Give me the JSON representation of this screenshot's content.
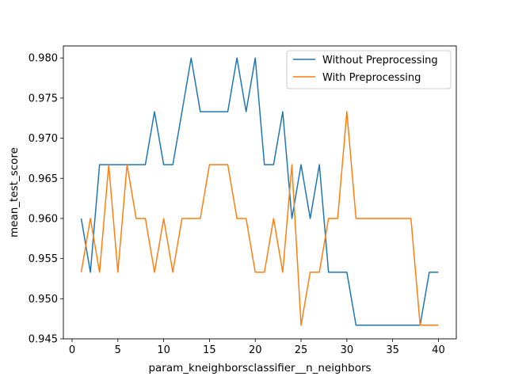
{
  "chart_data": {
    "type": "line",
    "title": "",
    "xlabel": "param_kneighborsclassifier__n_neighbors",
    "ylabel": "mean_test_score",
    "xlim": [
      -0.95,
      41.95
    ],
    "ylim": [
      0.945,
      0.9815
    ],
    "xticks": [
      0,
      5,
      10,
      15,
      20,
      25,
      30,
      35,
      40
    ],
    "xtick_labels": [
      "0",
      "5",
      "10",
      "15",
      "20",
      "25",
      "30",
      "35",
      "40"
    ],
    "yticks": [
      0.945,
      0.95,
      0.955,
      0.96,
      0.965,
      0.97,
      0.975,
      0.98
    ],
    "ytick_labels": [
      "0.945",
      "0.950",
      "0.955",
      "0.960",
      "0.965",
      "0.970",
      "0.975",
      "0.980"
    ],
    "grid": false,
    "legend_position": "top-right",
    "x": [
      1,
      2,
      3,
      4,
      5,
      6,
      7,
      8,
      9,
      10,
      11,
      12,
      13,
      14,
      15,
      16,
      17,
      18,
      19,
      20,
      21,
      22,
      23,
      24,
      25,
      26,
      27,
      28,
      29,
      30,
      31,
      32,
      33,
      34,
      35,
      36,
      37,
      38,
      39,
      40
    ],
    "series": [
      {
        "name": "Without Preprocessing",
        "color": "#1f77b4",
        "values": [
          0.96,
          0.9533,
          0.9667,
          0.9667,
          0.9667,
          0.9667,
          0.9667,
          0.9667,
          0.9733,
          0.9667,
          0.9667,
          0.9733,
          0.98,
          0.9733,
          0.9733,
          0.9733,
          0.9733,
          0.98,
          0.9733,
          0.98,
          0.9667,
          0.9667,
          0.9733,
          0.96,
          0.9667,
          0.96,
          0.9667,
          0.9533,
          0.9533,
          0.9533,
          0.9467,
          0.9467,
          0.9467,
          0.9467,
          0.9467,
          0.9467,
          0.9467,
          0.9467,
          0.9533,
          0.9533
        ]
      },
      {
        "name": "With Preprocessing",
        "color": "#ff7f0e",
        "values": [
          0.9533,
          0.96,
          0.9533,
          0.9667,
          0.9533,
          0.9667,
          0.96,
          0.96,
          0.9533,
          0.96,
          0.9533,
          0.96,
          0.96,
          0.96,
          0.9667,
          0.9667,
          0.9667,
          0.96,
          0.96,
          0.9533,
          0.9533,
          0.96,
          0.9533,
          0.9667,
          0.9467,
          0.9533,
          0.9533,
          0.96,
          0.96,
          0.9733,
          0.96,
          0.96,
          0.96,
          0.96,
          0.96,
          0.96,
          0.96,
          0.9467,
          0.9467,
          0.9467
        ]
      }
    ]
  }
}
